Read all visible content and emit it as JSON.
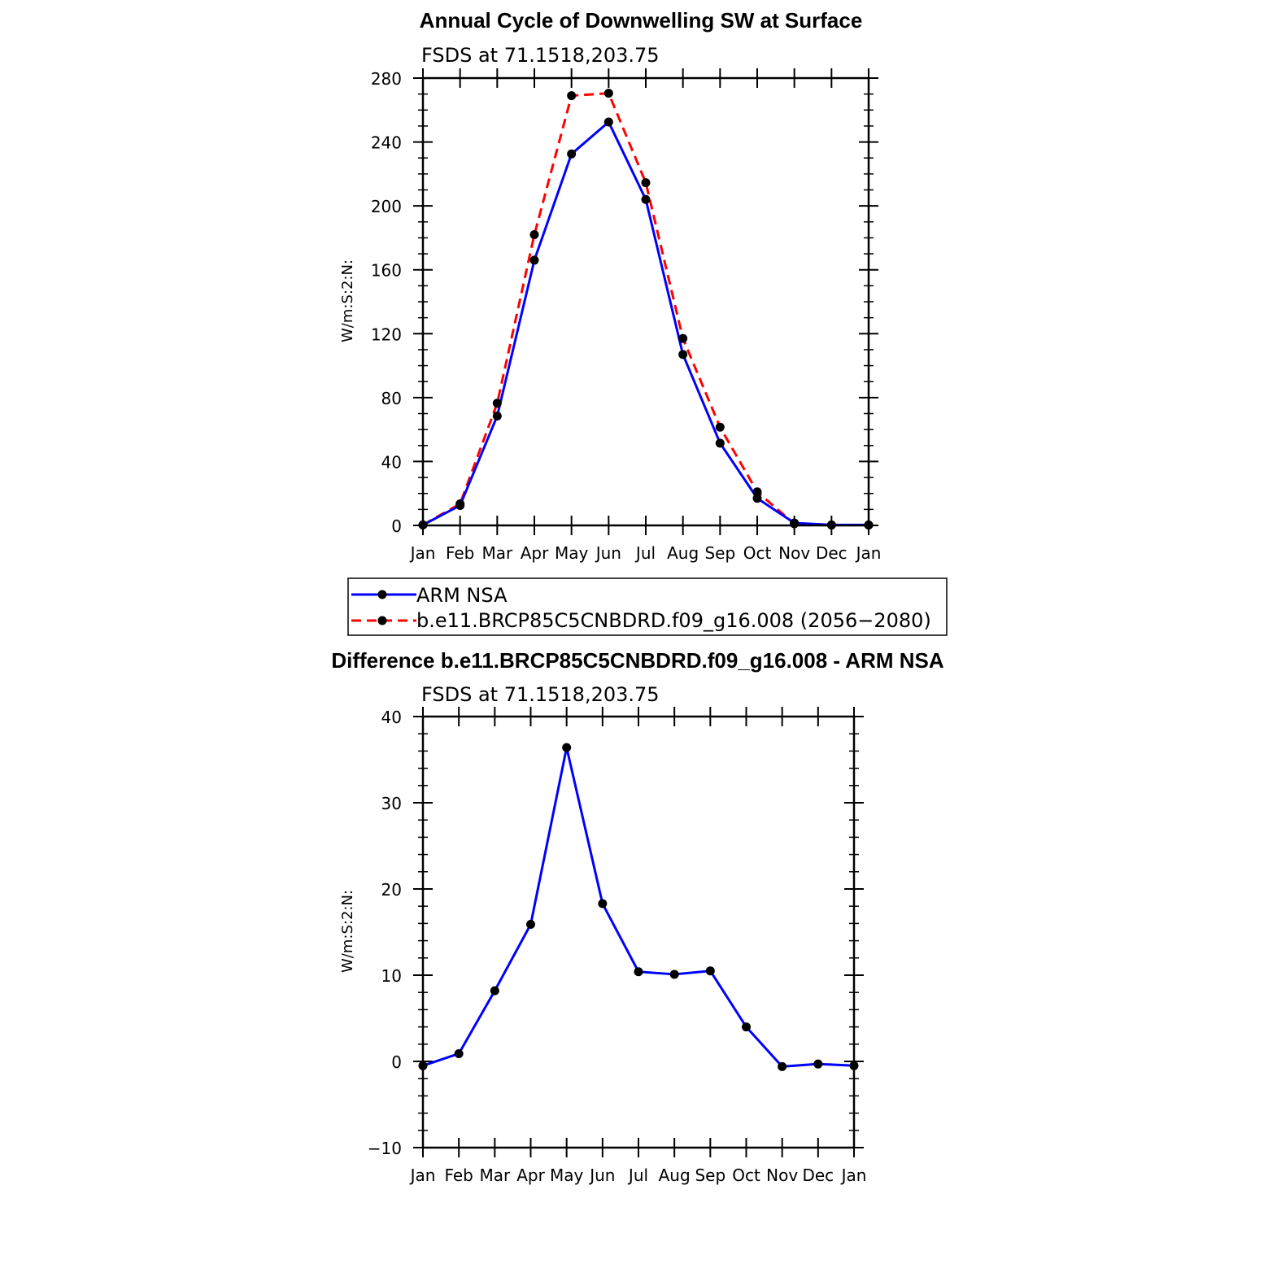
{
  "chart_data": [
    {
      "type": "line",
      "title": "Annual Cycle of Downwelling SW at Surface",
      "subtitle": "FSDS at 71.1518,203.75",
      "ylabel": "W/m:S:2:N:",
      "xlabel": "",
      "categories": [
        "Jan",
        "Feb",
        "Mar",
        "Apr",
        "May",
        "Jun",
        "Jul",
        "Aug",
        "Sep",
        "Oct",
        "Nov",
        "Dec",
        "Jan"
      ],
      "ylim": [
        0,
        280
      ],
      "yticks": [
        0,
        40,
        80,
        120,
        160,
        200,
        240,
        280
      ],
      "series": [
        {
          "name": "ARM NSA",
          "color": "#0000ff",
          "dash": "solid",
          "values": [
            0.3,
            12.5,
            68.5,
            166,
            232.5,
            252.5,
            204,
            107,
            51.5,
            17,
            1.5,
            0.3,
            0.3
          ]
        },
        {
          "name": "b.e11.BRCP85C5CNBDRD.f09_g16.008 (2056−2080)",
          "color": "#ff0000",
          "dash": "dashed",
          "values": [
            0.3,
            13.5,
            76.5,
            182,
            269,
            270.5,
            214.5,
            117,
            61.5,
            21,
            1,
            0.2,
            0.2
          ]
        }
      ],
      "legend": {
        "placement": "below"
      }
    },
    {
      "type": "line",
      "title": "Difference b.e11.BRCP85C5CNBDRD.f09_g16.008 - ARM NSA",
      "subtitle": "FSDS at 71.1518,203.75",
      "ylabel": "W/m:S:2:N:",
      "xlabel": "",
      "categories": [
        "Jan",
        "Feb",
        "Mar",
        "Apr",
        "May",
        "Jun",
        "Jul",
        "Aug",
        "Sep",
        "Oct",
        "Nov",
        "Dec",
        "Jan"
      ],
      "ylim": [
        -10,
        40
      ],
      "yticks": [
        -10,
        0,
        10,
        20,
        30,
        40
      ],
      "ytick_labels": [
        "−10",
        "0",
        "10",
        "20",
        "30",
        "40"
      ],
      "series": [
        {
          "name": "",
          "color": "#0000ff",
          "dash": "solid",
          "values": [
            -0.5,
            0.9,
            8.2,
            15.9,
            36.4,
            18.3,
            10.4,
            10.1,
            10.5,
            4.0,
            -0.6,
            -0.3,
            -0.5
          ]
        }
      ]
    }
  ]
}
